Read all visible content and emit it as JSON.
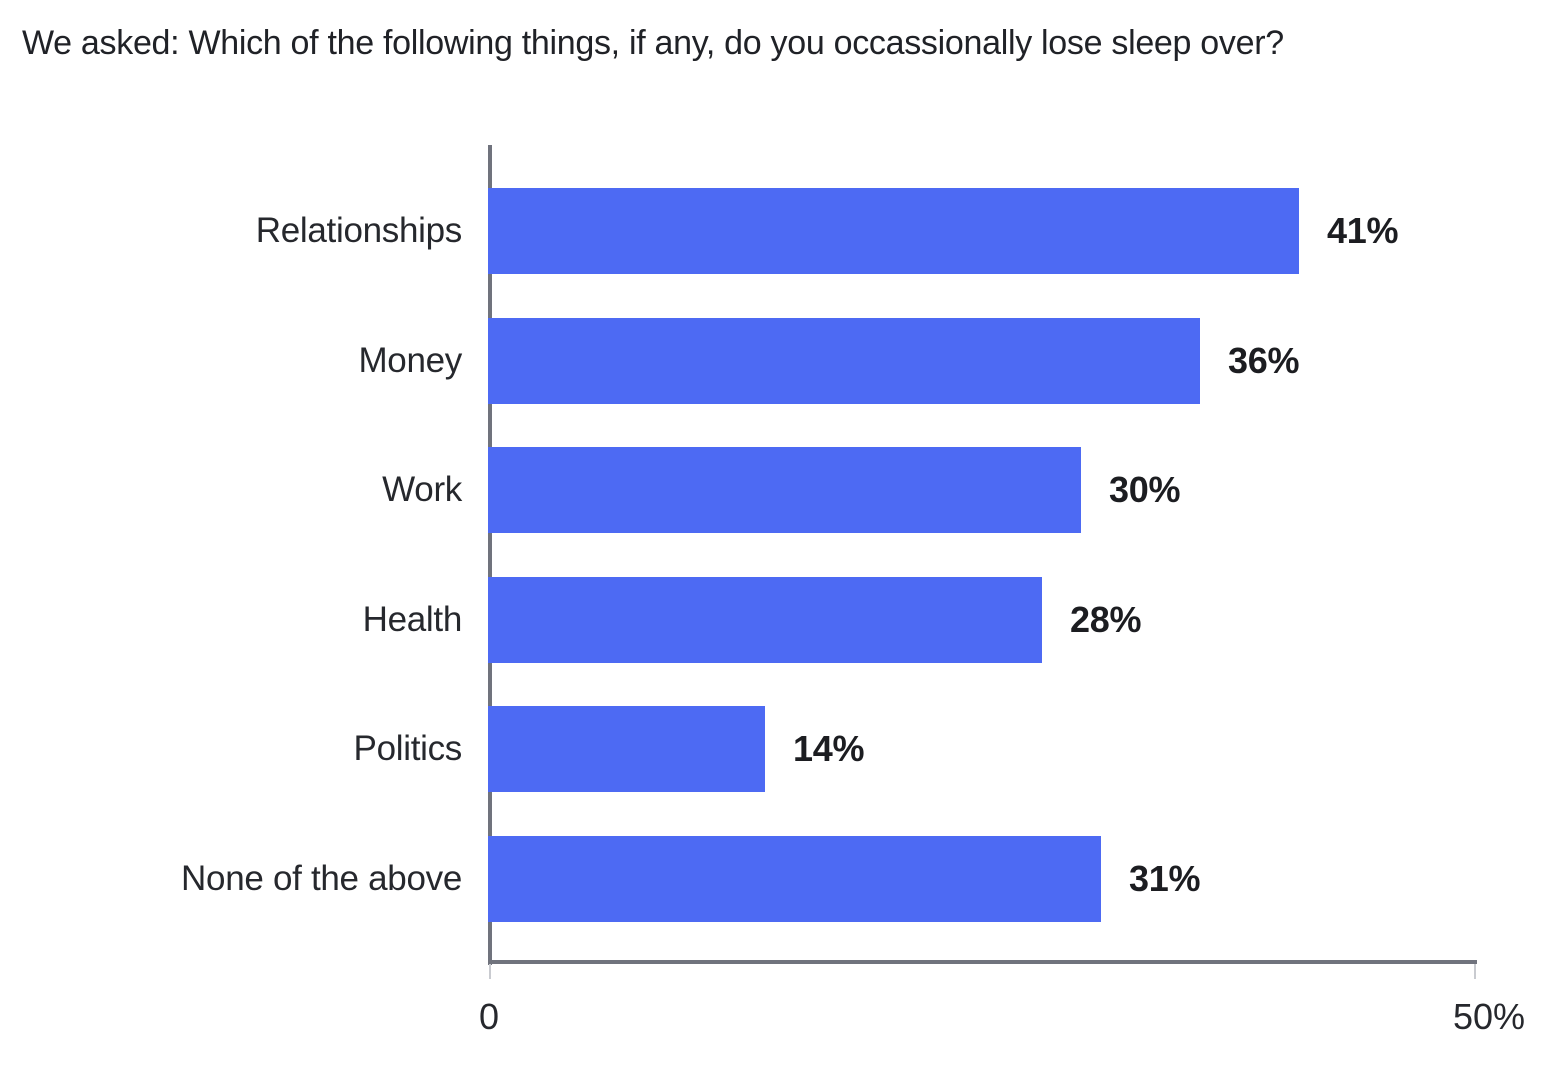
{
  "title": "We asked: Which of the following things, if any, do you occassionally lose sleep over?",
  "colors": {
    "bar": "#4d6af3",
    "axis": "#70737d",
    "minor_tick": "#c9cbd0",
    "title_text": "#202227",
    "category_text": "#26282d",
    "value_text": "#1c1d21",
    "background": "#ffffff"
  },
  "chart_data": {
    "type": "bar",
    "orientation": "horizontal",
    "title": "We asked: Which of the following things, if any, do you occassionally lose sleep over?",
    "categories": [
      "Relationships",
      "Money",
      "Work",
      "Health",
      "Politics",
      "None of the above"
    ],
    "values": [
      41,
      36,
      30,
      28,
      14,
      31
    ],
    "value_labels": [
      "41%",
      "36%",
      "30%",
      "28%",
      "14%",
      "31%"
    ],
    "xlabel": "",
    "ylabel": "",
    "xlim": [
      0,
      50
    ],
    "x_ticks": [
      "0",
      "50%"
    ],
    "grid": false,
    "legend": false
  }
}
